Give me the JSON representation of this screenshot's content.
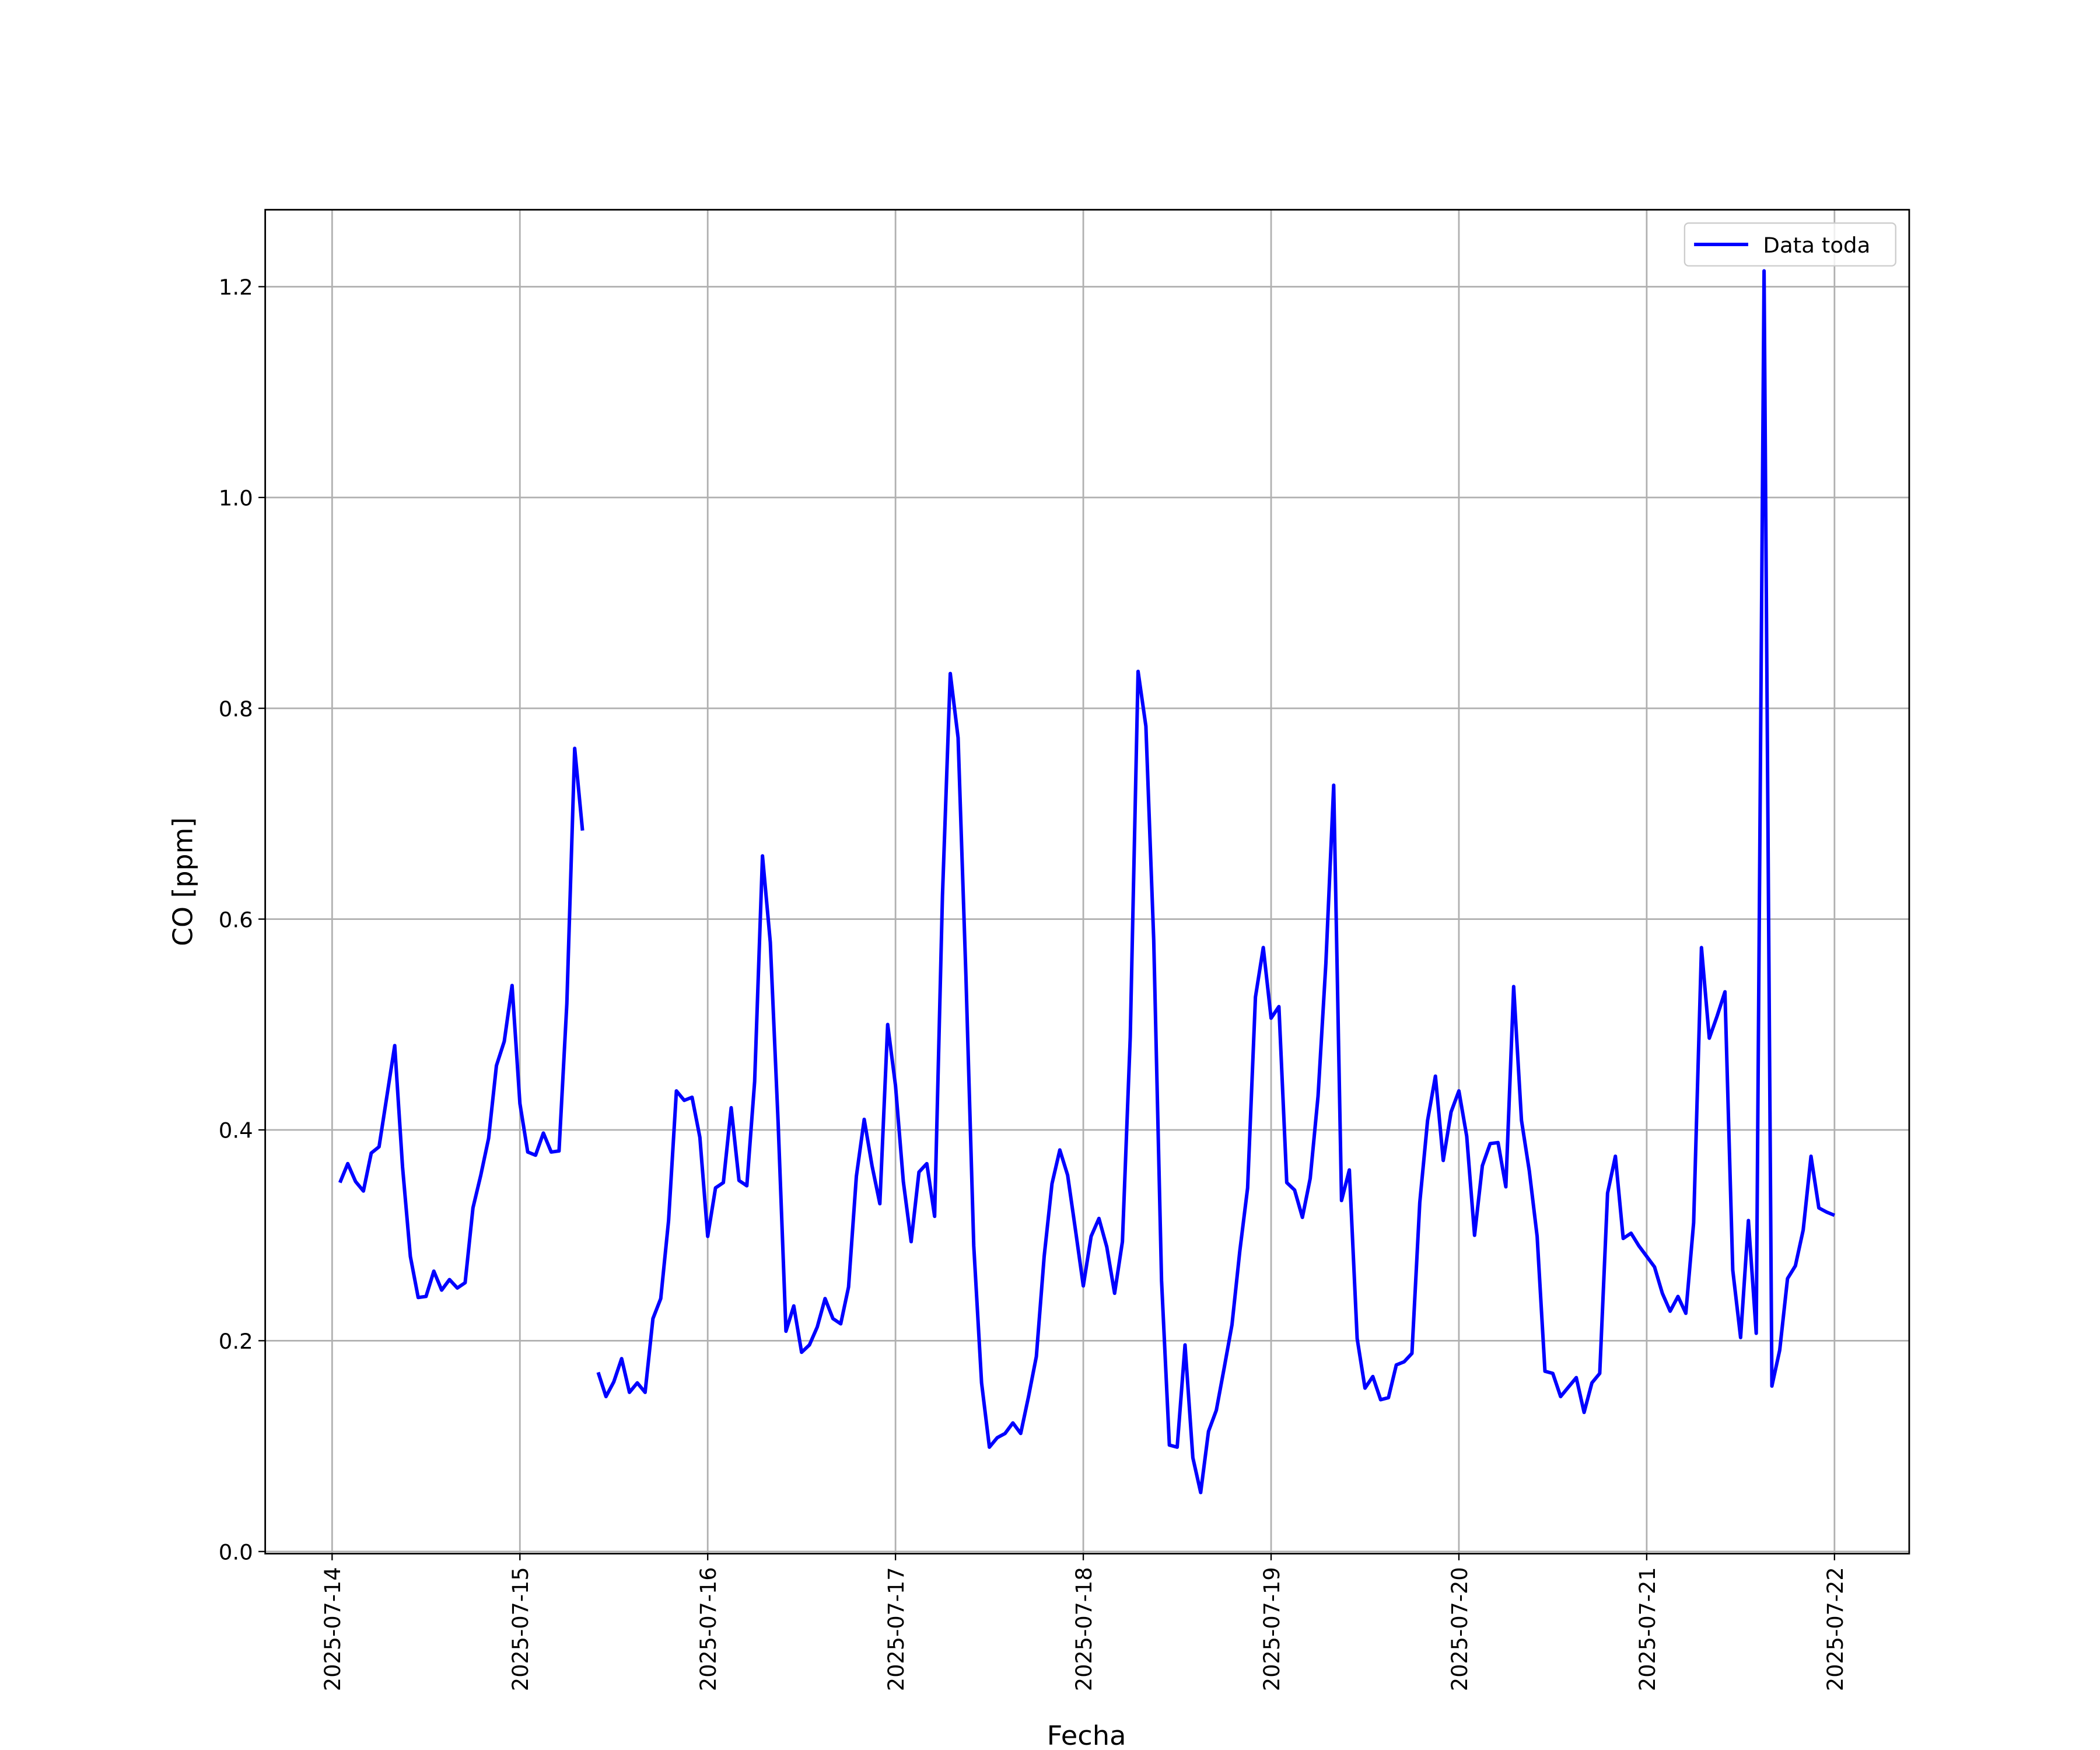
{
  "chart_data": {
    "type": "line",
    "xlabel": "Fecha",
    "ylabel": "CO [ppm]",
    "x": [
      "2025-07-14 01:00",
      "2025-07-14 02:00",
      "2025-07-14 03:00",
      "2025-07-14 04:00",
      "2025-07-14 05:00",
      "2025-07-14 06:00",
      "2025-07-14 07:00",
      "2025-07-14 08:00",
      "2025-07-14 09:00",
      "2025-07-14 10:00",
      "2025-07-14 11:00",
      "2025-07-14 12:00",
      "2025-07-14 13:00",
      "2025-07-14 14:00",
      "2025-07-14 15:00",
      "2025-07-14 16:00",
      "2025-07-14 17:00",
      "2025-07-14 18:00",
      "2025-07-14 19:00",
      "2025-07-14 20:00",
      "2025-07-14 21:00",
      "2025-07-14 22:00",
      "2025-07-14 23:00",
      "2025-07-15 00:00",
      "2025-07-15 01:00",
      "2025-07-15 02:00",
      "2025-07-15 03:00",
      "2025-07-15 04:00",
      "2025-07-15 05:00",
      "2025-07-15 06:00",
      "2025-07-15 07:00",
      "2025-07-15 08:00",
      "2025-07-15 09:00",
      "2025-07-15 10:00",
      "2025-07-15 11:00",
      "2025-07-15 12:00",
      "2025-07-15 13:00",
      "2025-07-15 14:00",
      "2025-07-15 15:00",
      "2025-07-15 16:00",
      "2025-07-15 17:00",
      "2025-07-15 18:00",
      "2025-07-15 19:00",
      "2025-07-15 20:00",
      "2025-07-15 21:00",
      "2025-07-15 22:00",
      "2025-07-15 23:00",
      "2025-07-16 00:00",
      "2025-07-16 01:00",
      "2025-07-16 02:00",
      "2025-07-16 03:00",
      "2025-07-16 04:00",
      "2025-07-16 05:00",
      "2025-07-16 06:00",
      "2025-07-16 07:00",
      "2025-07-16 08:00",
      "2025-07-16 09:00",
      "2025-07-16 10:00",
      "2025-07-16 11:00",
      "2025-07-16 12:00",
      "2025-07-16 13:00",
      "2025-07-16 14:00",
      "2025-07-16 15:00",
      "2025-07-16 16:00",
      "2025-07-16 17:00",
      "2025-07-16 18:00",
      "2025-07-16 19:00",
      "2025-07-16 20:00",
      "2025-07-16 21:00",
      "2025-07-16 22:00",
      "2025-07-16 23:00",
      "2025-07-17 00:00",
      "2025-07-17 01:00",
      "2025-07-17 02:00",
      "2025-07-17 03:00",
      "2025-07-17 04:00",
      "2025-07-17 05:00",
      "2025-07-17 06:00",
      "2025-07-17 07:00",
      "2025-07-17 08:00",
      "2025-07-17 09:00",
      "2025-07-17 10:00",
      "2025-07-17 11:00",
      "2025-07-17 12:00",
      "2025-07-17 13:00",
      "2025-07-17 14:00",
      "2025-07-17 15:00",
      "2025-07-17 16:00",
      "2025-07-17 17:00",
      "2025-07-17 18:00",
      "2025-07-17 19:00",
      "2025-07-17 20:00",
      "2025-07-17 21:00",
      "2025-07-17 22:00",
      "2025-07-17 23:00",
      "2025-07-18 00:00",
      "2025-07-18 01:00",
      "2025-07-18 02:00",
      "2025-07-18 03:00",
      "2025-07-18 04:00",
      "2025-07-18 05:00",
      "2025-07-18 06:00",
      "2025-07-18 07:00",
      "2025-07-18 08:00",
      "2025-07-18 09:00",
      "2025-07-18 10:00",
      "2025-07-18 11:00",
      "2025-07-18 12:00",
      "2025-07-18 13:00",
      "2025-07-18 14:00",
      "2025-07-18 15:00",
      "2025-07-18 16:00",
      "2025-07-18 17:00",
      "2025-07-18 18:00",
      "2025-07-18 19:00",
      "2025-07-18 20:00",
      "2025-07-18 21:00",
      "2025-07-18 22:00",
      "2025-07-18 23:00",
      "2025-07-19 00:00",
      "2025-07-19 01:00",
      "2025-07-19 02:00",
      "2025-07-19 03:00",
      "2025-07-19 04:00",
      "2025-07-19 05:00",
      "2025-07-19 06:00",
      "2025-07-19 07:00",
      "2025-07-19 08:00",
      "2025-07-19 09:00",
      "2025-07-19 10:00",
      "2025-07-19 11:00",
      "2025-07-19 12:00",
      "2025-07-19 13:00",
      "2025-07-19 14:00",
      "2025-07-19 15:00",
      "2025-07-19 16:00",
      "2025-07-19 17:00",
      "2025-07-19 18:00",
      "2025-07-19 19:00",
      "2025-07-19 20:00",
      "2025-07-19 21:00",
      "2025-07-19 22:00",
      "2025-07-19 23:00",
      "2025-07-20 00:00",
      "2025-07-20 01:00",
      "2025-07-20 02:00",
      "2025-07-20 03:00",
      "2025-07-20 04:00",
      "2025-07-20 05:00",
      "2025-07-20 06:00",
      "2025-07-20 07:00",
      "2025-07-20 08:00",
      "2025-07-20 09:00",
      "2025-07-20 10:00",
      "2025-07-20 11:00",
      "2025-07-20 12:00",
      "2025-07-20 13:00",
      "2025-07-20 14:00",
      "2025-07-20 15:00",
      "2025-07-20 16:00",
      "2025-07-20 17:00",
      "2025-07-20 18:00",
      "2025-07-20 19:00",
      "2025-07-20 20:00",
      "2025-07-20 21:00",
      "2025-07-20 22:00",
      "2025-07-20 23:00",
      "2025-07-21 00:00",
      "2025-07-21 01:00",
      "2025-07-21 02:00",
      "2025-07-21 03:00",
      "2025-07-21 04:00",
      "2025-07-21 05:00",
      "2025-07-21 06:00",
      "2025-07-21 07:00",
      "2025-07-21 08:00",
      "2025-07-21 09:00",
      "2025-07-21 10:00",
      "2025-07-21 11:00",
      "2025-07-21 12:00",
      "2025-07-21 13:00",
      "2025-07-21 14:00",
      "2025-07-21 15:00",
      "2025-07-21 16:00",
      "2025-07-21 17:00",
      "2025-07-21 18:00",
      "2025-07-21 19:00",
      "2025-07-21 20:00",
      "2025-07-21 21:00",
      "2025-07-21 22:00",
      "2025-07-21 23:00",
      "2025-07-22 00:00"
    ],
    "series": [
      {
        "name": "Data toda",
        "color": "#0000ff",
        "values": [
          0.35,
          0.368,
          0.351,
          0.342,
          0.378,
          0.384,
          0.432,
          0.48,
          0.365,
          0.28,
          0.241,
          0.242,
          0.266,
          0.248,
          0.258,
          0.25,
          0.255,
          0.326,
          0.357,
          0.392,
          0.461,
          0.484,
          0.537,
          0.425,
          0.379,
          0.376,
          0.397,
          0.379,
          0.38,
          0.52,
          0.762,
          0.684,
          null,
          0.17,
          0.147,
          0.161,
          0.183,
          0.151,
          0.16,
          0.151,
          0.221,
          0.24,
          0.314,
          0.437,
          0.428,
          0.431,
          0.393,
          0.299,
          0.345,
          0.35,
          0.421,
          0.352,
          0.347,
          0.446,
          0.66,
          0.578,
          0.407,
          0.209,
          0.233,
          0.189,
          0.196,
          0.213,
          0.24,
          0.221,
          0.216,
          0.251,
          0.356,
          0.41,
          0.366,
          0.33,
          0.5,
          0.442,
          0.351,
          0.294,
          0.36,
          0.368,
          0.318,
          0.622,
          0.833,
          0.772,
          0.546,
          0.29,
          0.16,
          0.099,
          0.108,
          0.112,
          0.122,
          0.112,
          0.147,
          0.185,
          0.28,
          0.349,
          0.381,
          0.357,
          0.305,
          0.252,
          0.299,
          0.316,
          0.289,
          0.245,
          0.294,
          0.488,
          0.835,
          0.783,
          0.58,
          0.257,
          0.101,
          0.099,
          0.196,
          0.089,
          0.056,
          0.114,
          0.134,
          0.174,
          0.215,
          0.285,
          0.345,
          0.526,
          0.573,
          0.506,
          0.517,
          0.35,
          0.343,
          0.317,
          0.354,
          0.432,
          0.558,
          0.727,
          0.333,
          0.362,
          0.202,
          0.155,
          0.166,
          0.144,
          0.146,
          0.177,
          0.18,
          0.188,
          0.331,
          0.409,
          0.451,
          0.371,
          0.417,
          0.437,
          0.394,
          0.3,
          0.366,
          0.387,
          0.388,
          0.346,
          0.536,
          0.409,
          0.361,
          0.299,
          0.171,
          0.169,
          0.147,
          0.156,
          0.165,
          0.132,
          0.16,
          0.169,
          0.34,
          0.375,
          0.297,
          0.302,
          0.29,
          0.28,
          0.27,
          0.245,
          0.228,
          0.242,
          0.226,
          0.312,
          0.573,
          0.487,
          0.508,
          0.531,
          0.267,
          0.203,
          0.314,
          0.207,
          1.215,
          0.157,
          0.191,
          0.259,
          0.271,
          0.305,
          0.375,
          0.326,
          0.322,
          0.319
        ]
      }
    ],
    "xlim": [
      "2025-07-13 15:27",
      "2025-07-22 09:33"
    ],
    "xticks": [
      "2025-07-14",
      "2025-07-15",
      "2025-07-16",
      "2025-07-17",
      "2025-07-18",
      "2025-07-19",
      "2025-07-20",
      "2025-07-21",
      "2025-07-22"
    ],
    "ylim": [
      -0.002,
      1.273
    ],
    "yticks": [
      {
        "value": 0,
        "label": "0.0"
      },
      0.2,
      0.4,
      0.6,
      0.8,
      {
        "value": 1,
        "label": "1.0"
      },
      1.2
    ],
    "grid": true,
    "legend": "upper right"
  }
}
